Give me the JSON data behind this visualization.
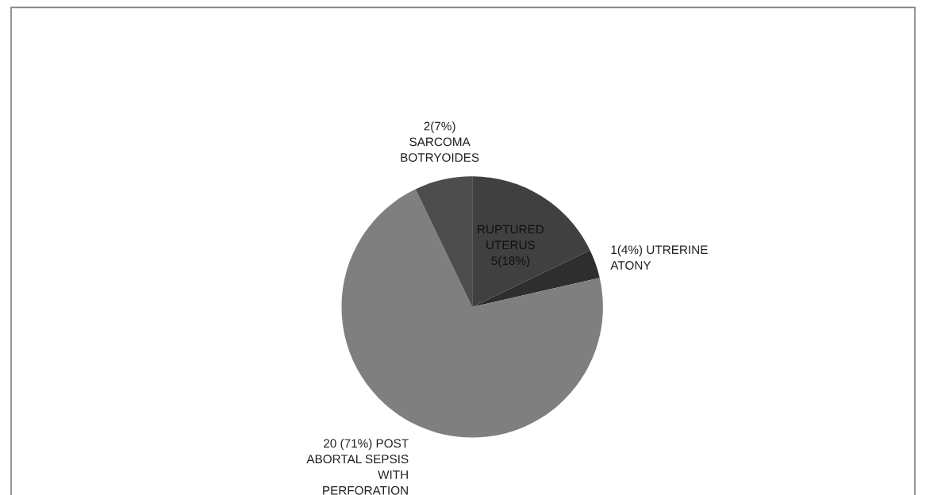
{
  "chart_data": {
    "type": "pie",
    "categories": [
      "RUPTURED\nUTERUS\n5(18%)",
      "1(4%) UTRERINE\nATONY",
      "20 (71%) POST\nABORTAL SEPSIS\nWITH\nPERFORATION",
      "2(7%)\nSARCOMA\nBOTRYOIDES"
    ],
    "values": [
      5,
      1,
      20,
      2
    ],
    "colors": [
      "#404040",
      "#2e2e2e",
      "#7f7f7f",
      "#4d4d4d"
    ],
    "legend": false
  }
}
